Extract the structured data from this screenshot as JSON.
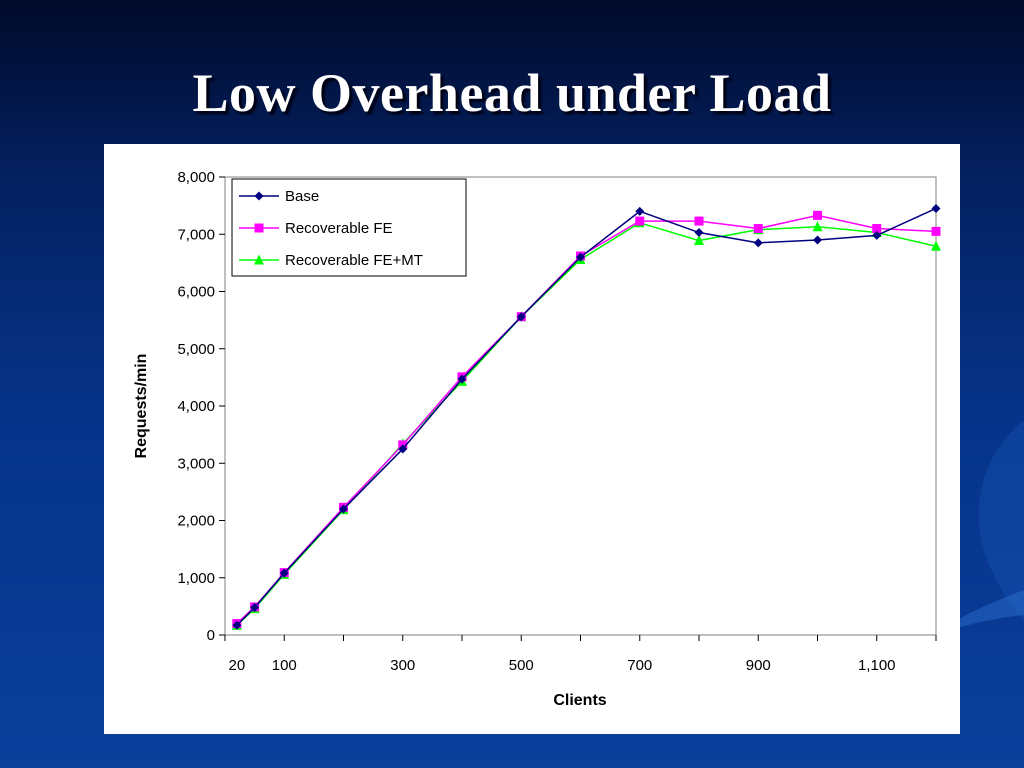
{
  "slide": {
    "title": "Low Overhead under Load"
  },
  "colors": {
    "base": "#000080",
    "recoverable_fe": "#ff00ff",
    "recoverable_fe_mt": "#00ff00"
  },
  "chart_data": {
    "type": "line",
    "title": "",
    "xlabel": "Clients",
    "ylabel": "Requests/min",
    "ylim": [
      0,
      8000
    ],
    "xlim": [
      0,
      1200
    ],
    "y_ticks": [
      0,
      1000,
      2000,
      3000,
      4000,
      5000,
      6000,
      7000,
      8000
    ],
    "y_tick_labels": [
      "0",
      "1,000",
      "2,000",
      "3,000",
      "4,000",
      "5,000",
      "6,000",
      "7,000",
      "8,000"
    ],
    "x_tick_labels": [
      "20",
      "100",
      "300",
      "500",
      "700",
      "900",
      "1,100"
    ],
    "x_tick_label_values": [
      20,
      100,
      300,
      500,
      700,
      900,
      1100
    ],
    "grid": false,
    "legend_position": "top-left",
    "x": [
      20,
      50,
      100,
      200,
      300,
      400,
      500,
      600,
      700,
      800,
      900,
      1000,
      1100,
      1200
    ],
    "series": [
      {
        "name": "Base",
        "marker": "diamond",
        "values": [
          170,
          480,
          1080,
          2200,
          3250,
          4470,
          5560,
          6600,
          7400,
          7030,
          6850,
          6900,
          6980,
          7450
        ]
      },
      {
        "name": "Recoverable FE",
        "marker": "square",
        "values": [
          200,
          490,
          1090,
          2230,
          3320,
          4510,
          5560,
          6620,
          7230,
          7230,
          7100,
          7330,
          7100,
          7050
        ]
      },
      {
        "name": "Recoverable FE+MT",
        "marker": "triangle",
        "values": [
          170,
          460,
          1060,
          2190,
          3340,
          4430,
          5560,
          6560,
          7200,
          6890,
          7080,
          7130,
          7030,
          6790
        ]
      }
    ]
  }
}
